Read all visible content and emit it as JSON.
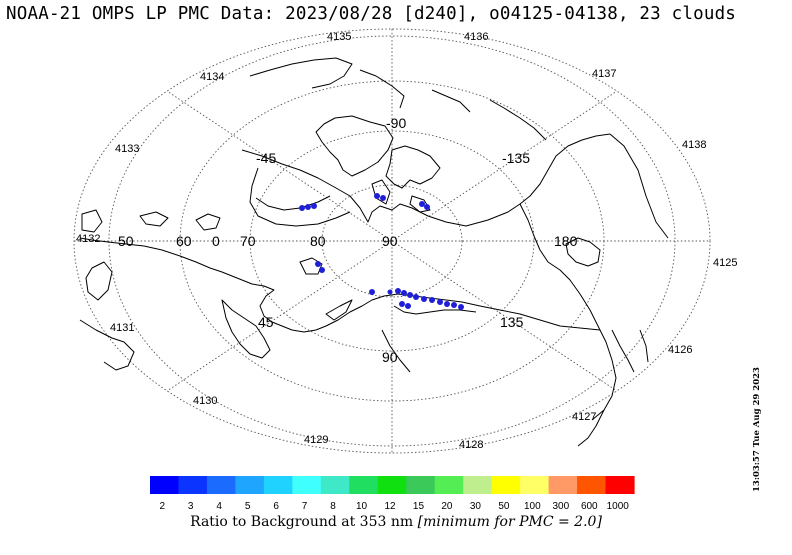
{
  "header": {
    "title": "NOAA-21 OMPS LP PMC Data: 2023/08/28 [d240], o04125-04138, 23 clouds"
  },
  "map": {
    "projection": "north-polar",
    "grid_lat_labels": [
      {
        "text": "80",
        "id": "lat-80"
      },
      {
        "text": "70",
        "id": "lat-70"
      },
      {
        "text": "60",
        "id": "lat-60"
      },
      {
        "text": "50",
        "id": "lat-50"
      }
    ],
    "grid_lon_labels": {
      "lon_0": "0",
      "lon_90_top": "-90",
      "lon_m45": "-45",
      "lon_m135": "-135",
      "lon_180": "180",
      "lon_135": "135",
      "lon_45": "45",
      "lon_90_bottom": "90",
      "pole": "90"
    },
    "orbit_numbers": [
      "4125",
      "4126",
      "4127",
      "4128",
      "4129",
      "4130",
      "4131",
      "4132",
      "4133",
      "4134",
      "4135",
      "4136",
      "4137",
      "4138"
    ],
    "clouds_count": 23,
    "cloud_color": "#1f1fd9"
  },
  "colorbar": {
    "ticks": [
      "2",
      "3",
      "4",
      "5",
      "6",
      "7",
      "8",
      "10",
      "12",
      "15",
      "20",
      "30",
      "50",
      "100",
      "300",
      "600",
      "1000"
    ],
    "colors": [
      "#0000ff",
      "#0b34ff",
      "#1c6bff",
      "#20a5ff",
      "#1fd2ff",
      "#3fffff",
      "#3fe9c8",
      "#1fde60",
      "#10e010",
      "#3bc95a",
      "#54ee54",
      "#bfee8f",
      "#ffff00",
      "#ffff66",
      "#ff9966",
      "#ff5500",
      "#ff0000"
    ],
    "caption_prefix": "Ratio to Background at 353 nm",
    "caption_italic": "[minimum for PMC = 2.0]"
  },
  "timestamp": "13:03:57 Tue Aug 29 2023"
}
